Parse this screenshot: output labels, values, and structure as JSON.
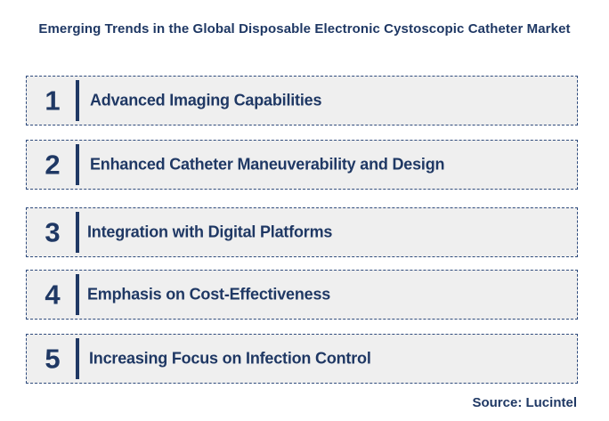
{
  "title": "Emerging Trends in the Global Disposable Electronic Cystoscopic Catheter Market",
  "trends": [
    {
      "number": "1",
      "label": "Advanced Imaging Capabilities"
    },
    {
      "number": "2",
      "label": "Enhanced Catheter Maneuverability and Design"
    },
    {
      "number": "3",
      "label": "Integration with Digital Platforms"
    },
    {
      "number": "4",
      "label": "Emphasis on Cost-Effectiveness"
    },
    {
      "number": "5",
      "label": "Increasing Focus on Infection Control"
    }
  ],
  "source": "Source: Lucintel",
  "colors": {
    "text": "#1f3864",
    "box_fill": "#efefef",
    "box_border": "#2f4b7c"
  }
}
